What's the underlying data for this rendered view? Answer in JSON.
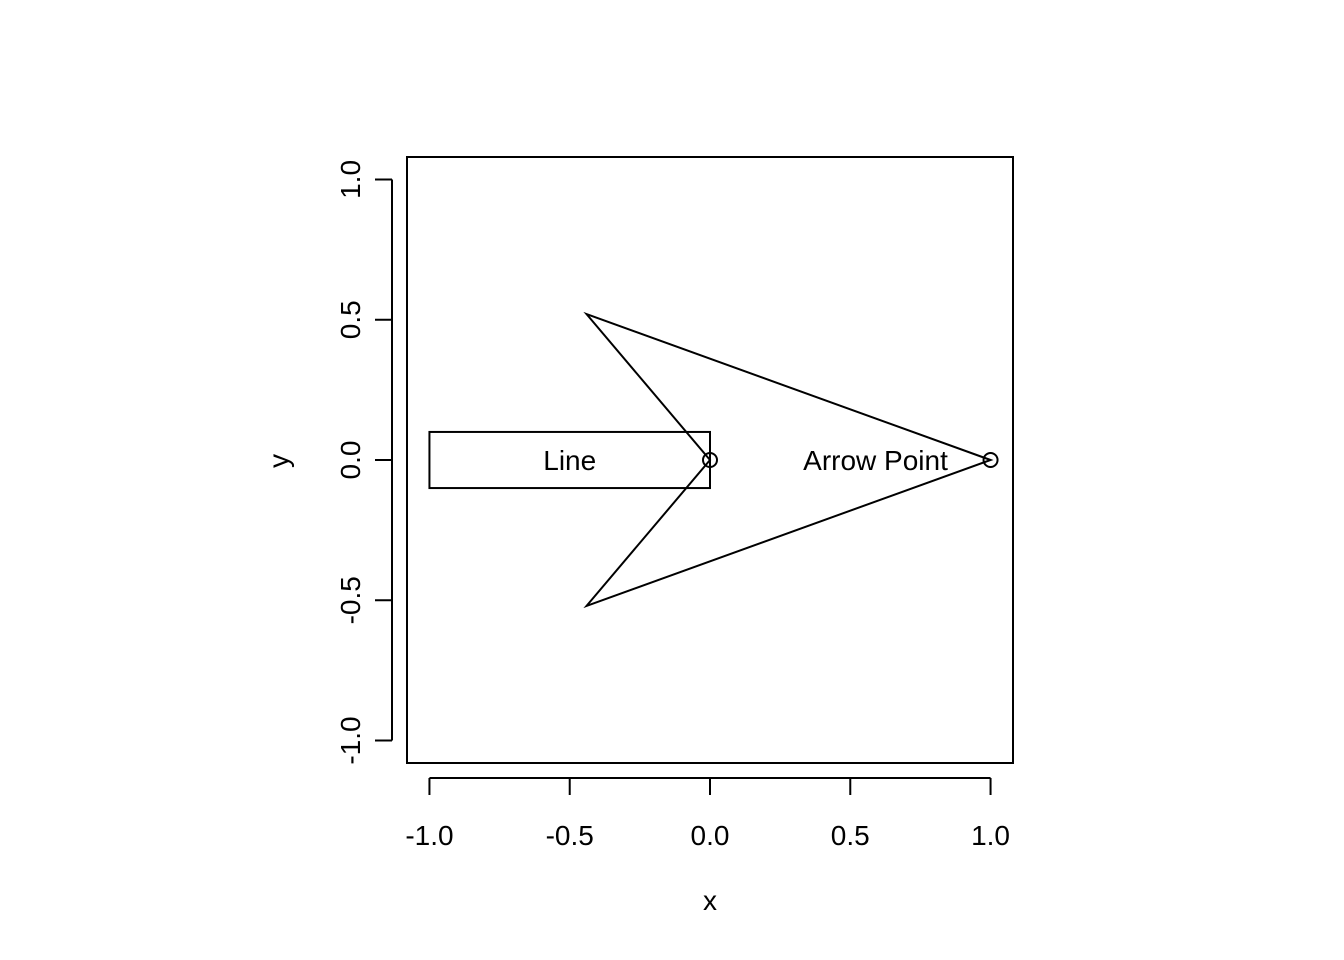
{
  "chart_data": {
    "type": "scatter",
    "title": "",
    "xlabel": "x",
    "ylabel": "y",
    "xlim": [
      -1.08,
      1.08
    ],
    "ylim": [
      -1.08,
      1.08
    ],
    "grid": false,
    "x_ticks": [
      -1.0,
      -0.5,
      0.0,
      0.5,
      1.0
    ],
    "x_tick_labels": [
      "-1.0",
      "-0.5",
      "0.0",
      "0.5",
      "1.0"
    ],
    "y_ticks": [
      -1.0,
      -0.5,
      0.0,
      0.5,
      1.0
    ],
    "y_tick_labels": [
      "-1.0",
      "-0.5",
      "0.0",
      "0.5",
      "1.0"
    ],
    "points": [
      {
        "x": 0.0,
        "y": 0.0
      },
      {
        "x": 1.0,
        "y": 0.0
      }
    ],
    "shapes": {
      "rectangle": {
        "x_min": -1.0,
        "x_max": 0.0,
        "y_min": -0.1,
        "y_max": 0.1
      },
      "arrow_polygon": [
        {
          "x": 1.0,
          "y": 0.0
        },
        {
          "x": -0.44,
          "y": 0.52
        },
        {
          "x": 0.0,
          "y": 0.0
        },
        {
          "x": -0.44,
          "y": -0.52
        }
      ]
    },
    "annotations": [
      {
        "text": "Line",
        "x": -0.5,
        "y": 0.0
      },
      {
        "text": "Arrow Point",
        "x": 0.59,
        "y": 0.0
      }
    ]
  }
}
